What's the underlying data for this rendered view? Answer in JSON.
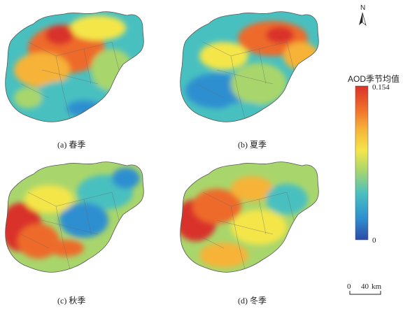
{
  "panels": [
    {
      "caption": "(a) 春季",
      "season": "spring"
    },
    {
      "caption": "(b) 夏季",
      "season": "summer"
    },
    {
      "caption": "(c) 秋季",
      "season": "autumn"
    },
    {
      "caption": "(d) 冬季",
      "season": "winter"
    }
  ],
  "legend": {
    "title": "AOD季节均值",
    "max_label": "0.154",
    "min_label": "0",
    "colors": [
      "#2c4ba8",
      "#2f8fd0",
      "#49c0c0",
      "#a9d66c",
      "#f4e64a",
      "#f6b338",
      "#ee6a2a",
      "#d9322a"
    ]
  },
  "north_arrow": {
    "label": "N"
  },
  "scale_bar": {
    "zero": "0",
    "distance": "40",
    "unit": "km"
  }
}
